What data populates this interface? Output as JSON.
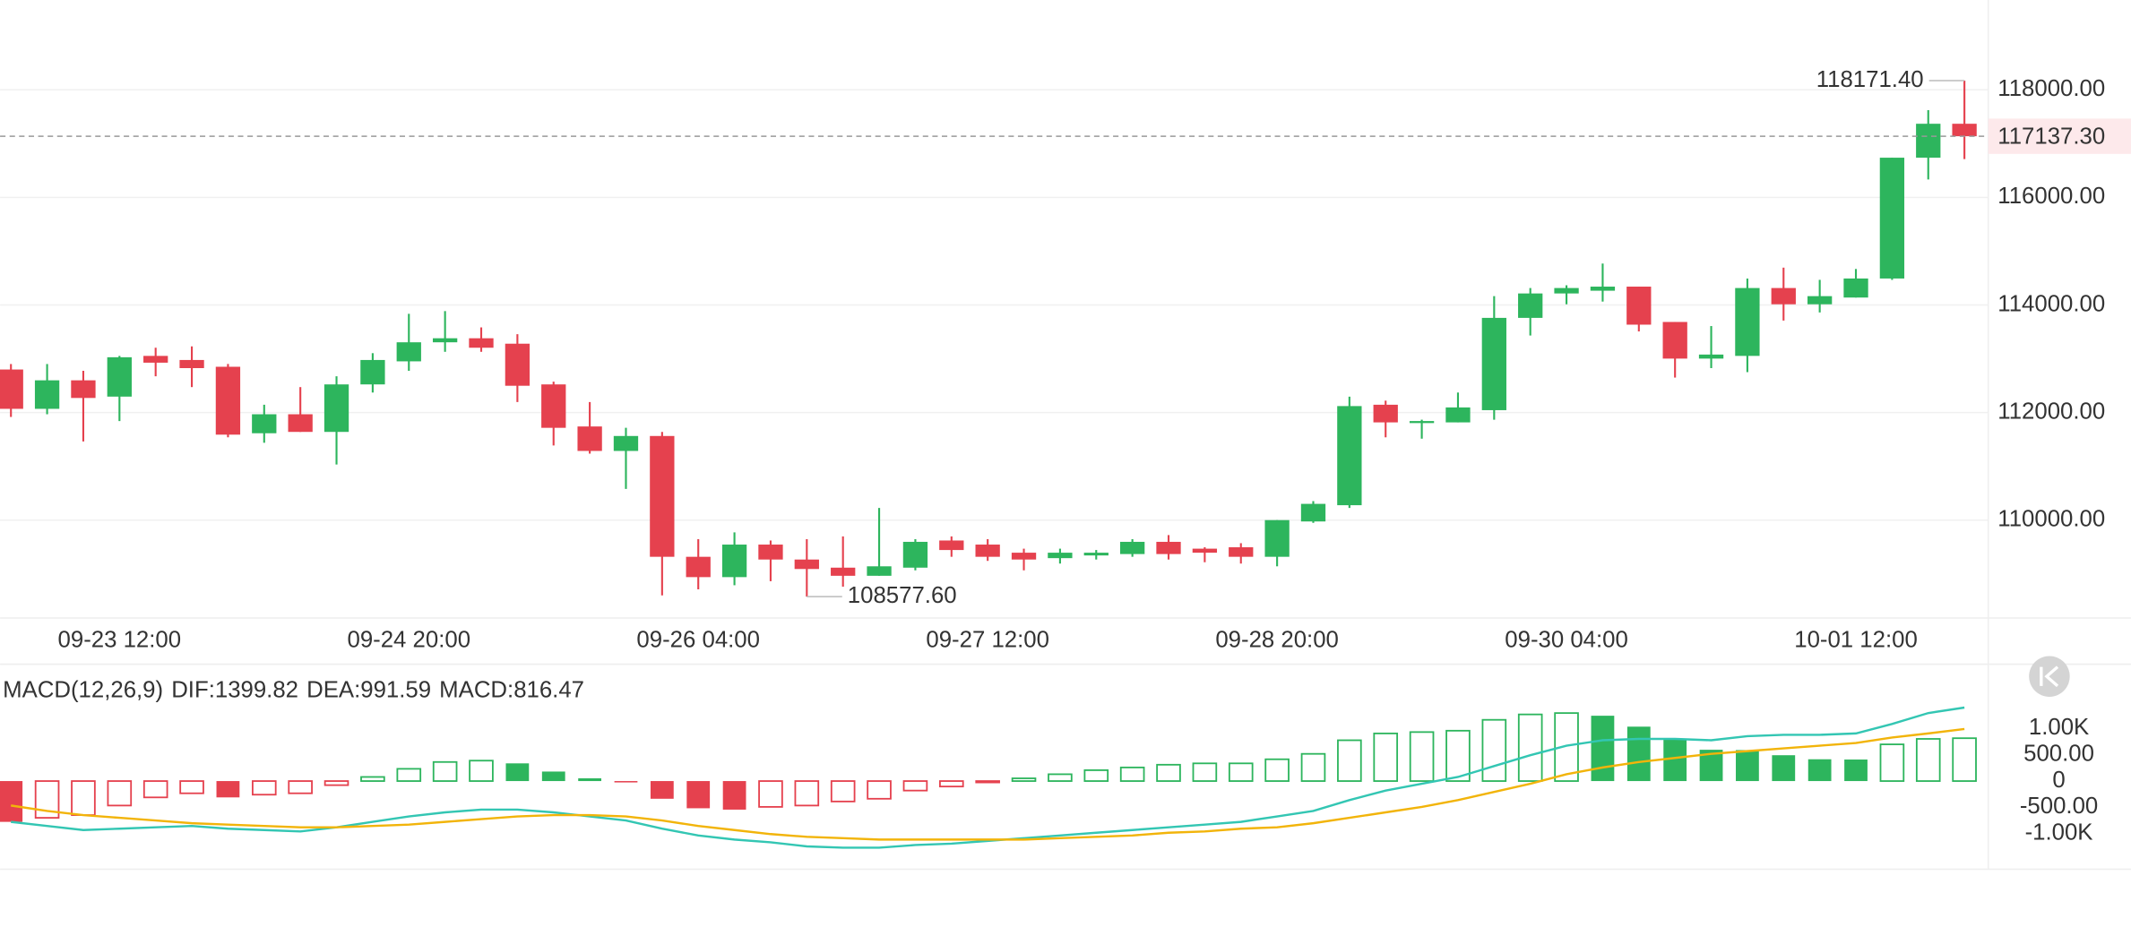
{
  "chart_data": [
    {
      "type": "candlestick",
      "categories": [
        null,
        null,
        null,
        "09-23 12:00",
        null,
        null,
        null,
        null,
        null,
        null,
        null,
        "09-24 20:00",
        null,
        null,
        null,
        null,
        null,
        null,
        null,
        "09-26 04:00",
        null,
        null,
        null,
        null,
        null,
        null,
        null,
        "09-27 12:00",
        null,
        null,
        null,
        null,
        null,
        null,
        null,
        "09-28 20:00",
        null,
        null,
        null,
        null,
        null,
        null,
        null,
        "09-30 04:00",
        null,
        null,
        null,
        null,
        null,
        null,
        null,
        "10-01 12:00",
        null,
        null,
        null
      ],
      "open": [
        112800,
        112069,
        112599,
        112296,
        113053,
        112977,
        112851,
        111615,
        111968,
        111640,
        112523,
        112952,
        113306,
        113381,
        113280,
        112523,
        111741,
        111286,
        111564,
        109318,
        108940,
        109545,
        109267,
        109116,
        108965,
        109116,
        109621,
        109545,
        109394,
        109293,
        109343,
        109369,
        109596,
        109469,
        109495,
        109318,
        109975,
        110277,
        112145,
        111817,
        111817,
        112044,
        113760,
        114214,
        114265,
        114341,
        113684,
        113003,
        113053,
        114315,
        114013,
        114138,
        114492,
        116738,
        117369
      ],
      "high": [
        112902,
        112902,
        112775,
        113053,
        113205,
        113230,
        112902,
        112145,
        112473,
        112674,
        113104,
        113835,
        113886,
        113583,
        113457,
        112574,
        112195,
        111716,
        111640,
        109646,
        109772,
        109621,
        109646,
        109697,
        110227,
        109646,
        109697,
        109646,
        109469,
        109469,
        109444,
        109646,
        109722,
        109495,
        109571,
        110000,
        110353,
        112296,
        112221,
        111867,
        112372,
        114164,
        114315,
        114366,
        114770,
        114341,
        113684,
        113608,
        114492,
        114694,
        114467,
        114669,
        116738,
        117621,
        118171.4
      ],
      "low": [
        111918,
        111968,
        111463,
        111842,
        112674,
        112473,
        111539,
        111438,
        111640,
        111034,
        112372,
        112775,
        113129,
        113129,
        112195,
        111387,
        111236,
        110580,
        108600,
        108713,
        108789,
        108864,
        108577.6,
        108763,
        108965,
        109066,
        109318,
        109242,
        109066,
        109192,
        109267,
        109318,
        109267,
        109217,
        109192,
        109141,
        109949,
        110227,
        111539,
        111514,
        111817,
        111867,
        113432,
        114013,
        114063,
        113508,
        112650,
        112826,
        112750,
        113710,
        113861,
        114138,
        114467,
        116334,
        116713
      ],
      "close": [
        112069,
        112599,
        112271,
        113028,
        112927,
        112826,
        111589,
        111968,
        111640,
        112523,
        112977,
        113306,
        113381,
        113205,
        112498,
        111716,
        111286,
        111564,
        109318,
        108940,
        109545,
        109267,
        109091,
        108965,
        109141,
        109596,
        109444,
        109318,
        109267,
        109394,
        109394,
        109596,
        109369,
        109394,
        109318,
        110000,
        110302,
        112120,
        111817,
        111842,
        112095,
        113760,
        114214,
        114315,
        114341,
        113634,
        113003,
        113078,
        114315,
        114013,
        114164,
        114492,
        116738,
        117369,
        117137.3
      ],
      "up_color": "#2db55d",
      "down_color": "#e5414e",
      "ylim": [
        108180,
        119670
      ],
      "yticks": [
        {
          "value": 110000,
          "label": "110000.00"
        },
        {
          "value": 112000,
          "label": "112000.00"
        },
        {
          "value": 114000,
          "label": "114000.00"
        },
        {
          "value": 116000,
          "label": "116000.00"
        },
        {
          "value": 118000,
          "label": "118000.00"
        }
      ],
      "grid": true,
      "last_price": {
        "value": 117137.3,
        "label": "117137.30"
      },
      "annotations": [
        {
          "value": 118171.4,
          "label": "118171.40"
        },
        {
          "value": 108577.6,
          "label": "108577.60"
        }
      ]
    },
    {
      "type": "macd",
      "indicator": "MACD(12,26,9)",
      "series": [
        {
          "name": "DIF:1399.82",
          "color": "#33c6b3",
          "type": "line",
          "values": [
            -777,
            -855,
            -933,
            -907,
            -881,
            -855,
            -907,
            -933,
            -959,
            -881,
            -777,
            -674,
            -596,
            -544,
            -544,
            -596,
            -674,
            -751,
            -907,
            -1036,
            -1114,
            -1166,
            -1244,
            -1269,
            -1269,
            -1218,
            -1192,
            -1140,
            -1088,
            -1036,
            -984,
            -933,
            -881,
            -829,
            -777,
            -674,
            -570,
            -363,
            -181,
            -52,
            78,
            285,
            492,
            674,
            777,
            803,
            803,
            777,
            855,
            881,
            881,
            907,
            1088,
            1295,
            1399.82
          ]
        },
        {
          "name": "DEA:991.59",
          "color": "#f2b40a",
          "type": "line",
          "values": [
            -466,
            -570,
            -648,
            -700,
            -751,
            -803,
            -829,
            -855,
            -881,
            -881,
            -855,
            -829,
            -777,
            -725,
            -674,
            -648,
            -648,
            -674,
            -751,
            -855,
            -933,
            -1010,
            -1062,
            -1088,
            -1114,
            -1114,
            -1114,
            -1114,
            -1114,
            -1088,
            -1062,
            -1036,
            -984,
            -959,
            -907,
            -881,
            -803,
            -700,
            -596,
            -492,
            -363,
            -207,
            -52,
            130,
            259,
            363,
            440,
            518,
            570,
            622,
            674,
            725,
            829,
            907,
            991.59
          ]
        },
        {
          "name": "MACD:816.47",
          "color": "#d64fc4",
          "type": "histogram",
          "values": [
            -777,
            -700,
            -648,
            -466,
            -311,
            -233,
            -311,
            -259,
            -233,
            -78,
            78,
            233,
            363,
            389,
            337,
            181,
            52,
            -26,
            -337,
            -518,
            -544,
            -492,
            -466,
            -389,
            -337,
            -181,
            -104,
            -26,
            52,
            130,
            207,
            259,
            311,
            337,
            337,
            415,
            518,
            777,
            907,
            933,
            959,
            1166,
            1269,
            1295,
            1244,
            1036,
            803,
            596,
            590,
            492,
            415,
            410,
            699,
            803,
            816.47
          ]
        }
      ],
      "up_color": "#2db55d",
      "down_color": "#e5414e",
      "ylim": [
        -1680,
        2200
      ],
      "yticks": [
        {
          "value": 1000,
          "label": "1.00K"
        },
        {
          "value": 500,
          "label": "500.00"
        },
        0,
        {
          "value": -500,
          "label": "-500.00"
        },
        {
          "value": -1000,
          "label": "-1.00K"
        }
      ]
    }
  ]
}
